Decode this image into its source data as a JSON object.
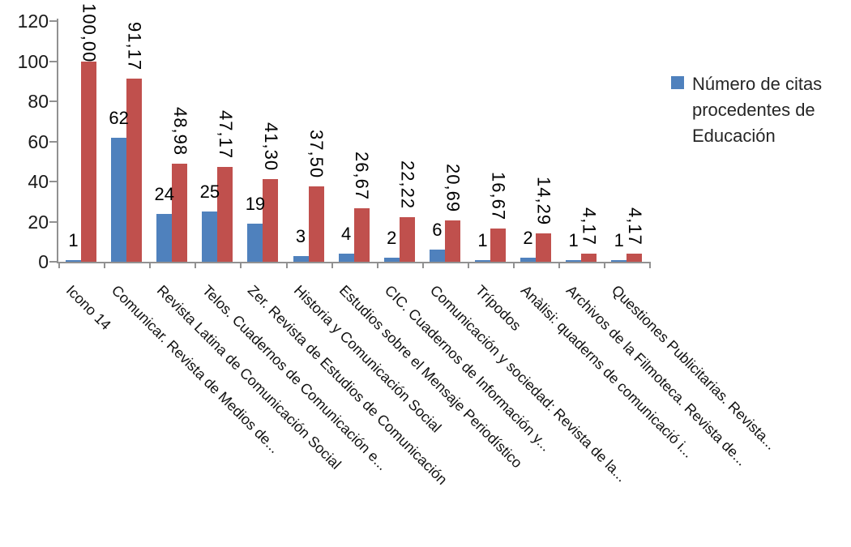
{
  "chart_data": {
    "type": "bar",
    "title": "",
    "grid": "off",
    "legend_position": "right",
    "categories": [
      "Icono 14",
      "Comunicar. Revista de Medios de...",
      "Revista Latina de Comunicación Social",
      "Telos. Cuadernos de Comunicación e...",
      "Zer. Revista de Estudios de Comunicación",
      "Historia y Comunicación Social",
      "Estudios sobre el Mensaje Periodístico",
      "CIC. Cuadernos de Información y...",
      "Comunicación y sociedad: Revista de la...",
      "Trípodos",
      "Anàlisi: quaderns de comunicació i...",
      "Archivos de la Filmoteca. Revista de...",
      "Questiones Publicitarias. Revista..."
    ],
    "series": [
      {
        "name": "Número de citas procedentes de Educación",
        "color": "#4F81BD",
        "values": [
          1,
          62,
          24,
          25,
          19,
          3,
          4,
          2,
          6,
          1,
          2,
          1,
          1
        ],
        "labels": [
          "1",
          "62",
          "24",
          "25",
          "19",
          "3",
          "4",
          "2",
          "6",
          "1",
          "2",
          "1",
          "1"
        ],
        "label_orientation": "horizontal"
      },
      {
        "name": "",
        "color": "#C0504D",
        "values": [
          100.0,
          91.17,
          48.98,
          47.17,
          41.3,
          37.5,
          26.67,
          22.22,
          20.69,
          16.67,
          14.29,
          4.17,
          4.17
        ],
        "labels": [
          "100,00",
          "91,17",
          "48,98",
          "47,17",
          "41,30",
          "37,50",
          "26,67",
          "22,22",
          "20,69",
          "16,67",
          "14,29",
          "4,17",
          "4,17"
        ],
        "label_orientation": "vertical"
      }
    ],
    "y_axis": {
      "min": 0,
      "max": 120,
      "step": 20,
      "tick_labels": [
        "0",
        "20",
        "40",
        "60",
        "80",
        "100",
        "120"
      ]
    }
  },
  "legend": {
    "items": [
      {
        "label": "Número de citas procedentes de Educación",
        "color": "#4F81BD"
      }
    ]
  },
  "colors": {
    "bar_blue": "#4F81BD",
    "bar_red": "#C0504D",
    "axis": "#919191",
    "text": "#000000"
  }
}
